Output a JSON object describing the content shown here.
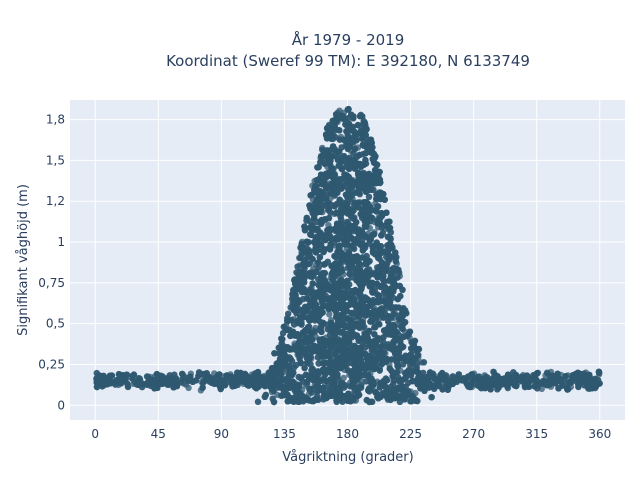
{
  "chart_data": {
    "type": "scatter",
    "title_line1": "År 1979 - 2019",
    "title_line2": "Koordinat (Sweref 99 TM): E 392180, N 6133749",
    "xlabel": "Vågriktning (grader)",
    "ylabel": "Signifikant våghöjd (m)",
    "xlim": [
      -18,
      378
    ],
    "ylim": [
      -0.09,
      1.87
    ],
    "x_ticks": [
      0,
      45,
      90,
      135,
      180,
      225,
      270,
      315,
      360
    ],
    "x_tick_labels": [
      "0",
      "45",
      "90",
      "135",
      "180",
      "225",
      "270",
      "315",
      "360"
    ],
    "y_ticks": [
      0,
      0.25,
      0.5,
      0.75,
      1,
      1.25,
      1.5,
      1.75
    ],
    "y_tick_labels": [
      "0",
      "0,25",
      "0,5",
      "0,75",
      "1",
      "1,2",
      "1,5",
      "1,8"
    ],
    "grid": true,
    "marker_color": "#2f5870",
    "plot_bgcolor": "#e5ecf6",
    "distribution": {
      "baseline_height": 0.15,
      "baseline_spread": 0.03,
      "peak_direction": 180,
      "peak_height": 1.83,
      "peak_half_width": 38,
      "min_height": 0.02,
      "x_range": [
        0,
        360
      ]
    }
  }
}
